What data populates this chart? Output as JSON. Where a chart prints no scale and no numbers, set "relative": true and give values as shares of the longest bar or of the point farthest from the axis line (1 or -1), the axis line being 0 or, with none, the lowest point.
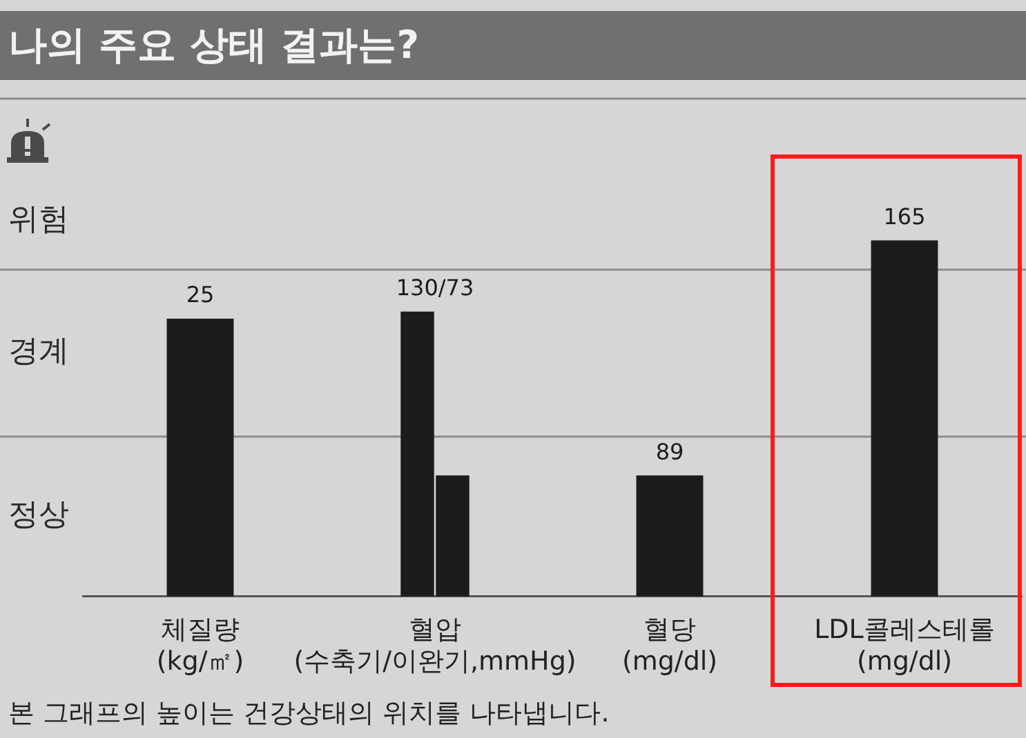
{
  "chart_data": {
    "type": "bar",
    "title": "나의 주요 상태 결과는?",
    "categories": [
      "체질량\n(kg/㎡)",
      "혈압\n(수축기/이완기,mmHg)",
      "혈당\n(mg/dl)",
      "LDL콜레스테롤\n(mg/dl)"
    ],
    "relative": true,
    "series": [
      {
        "color": "#1c1c1c",
        "values": [
          0.78,
          0.8,
          0.34,
          1
        ]
      },
      {
        "color": "#1c1c1c",
        "values": [
          null,
          0.34,
          null,
          null
        ]
      }
    ],
    "ref_lines": [
      {
        "axis": "y",
        "value": 0.45,
        "color": "#8c8c8c"
      },
      {
        "axis": "y",
        "value": 0.92,
        "color": "#8c8c8c"
      },
      {
        "axis": "y",
        "value": 1.4,
        "color": "#8c8c8c"
      }
    ],
    "annotations": [
      {
        "text": "25",
        "x": "체질량\n(kg/㎡)",
        "y": 0.78
      },
      {
        "text": "130/73",
        "x": "혈압\n(수축기/이완기,mmHg)",
        "y": 0.8
      },
      {
        "text": "89",
        "x": "혈당\n(mg/dl)",
        "y": 0.34
      },
      {
        "text": "165",
        "x": "LDL콜레스테롤\n(mg/dl)",
        "y": 1
      },
      "위험",
      "경계",
      "정상",
      "본 그래프의 높이는 건강상태의 위치를 나타냅니다."
    ],
    "grid": false,
    "legend": false
  }
}
